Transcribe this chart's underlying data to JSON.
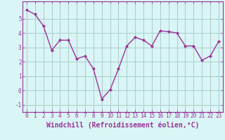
{
  "x": [
    0,
    1,
    2,
    3,
    4,
    5,
    6,
    7,
    8,
    9,
    10,
    11,
    12,
    13,
    14,
    15,
    16,
    17,
    18,
    19,
    20,
    21,
    22,
    23
  ],
  "y": [
    5.6,
    5.3,
    4.5,
    2.8,
    3.5,
    3.5,
    2.2,
    2.4,
    1.5,
    -0.6,
    0.05,
    1.5,
    3.1,
    3.7,
    3.5,
    3.1,
    4.15,
    4.1,
    4.0,
    3.1,
    3.1,
    2.1,
    2.4,
    3.4
  ],
  "line_color": "#993399",
  "marker": "D",
  "marker_size": 2,
  "bg_color": "#d9f5f5",
  "grid_color": "#aacccc",
  "xlabel": "Windchill (Refroidissement éolien,°C)",
  "xlabel_fontsize": 7,
  "ylim": [
    -1.5,
    6.2
  ],
  "xlim": [
    -0.5,
    23.5
  ],
  "yticks": [
    -1,
    0,
    1,
    2,
    3,
    4,
    5
  ],
  "xticks": [
    0,
    1,
    2,
    3,
    4,
    5,
    6,
    7,
    8,
    9,
    10,
    11,
    12,
    13,
    14,
    15,
    16,
    17,
    18,
    19,
    20,
    21,
    22,
    23
  ],
  "tick_fontsize": 5.5,
  "tick_color": "#993399",
  "spine_color": "#993399",
  "linewidth": 1.0
}
